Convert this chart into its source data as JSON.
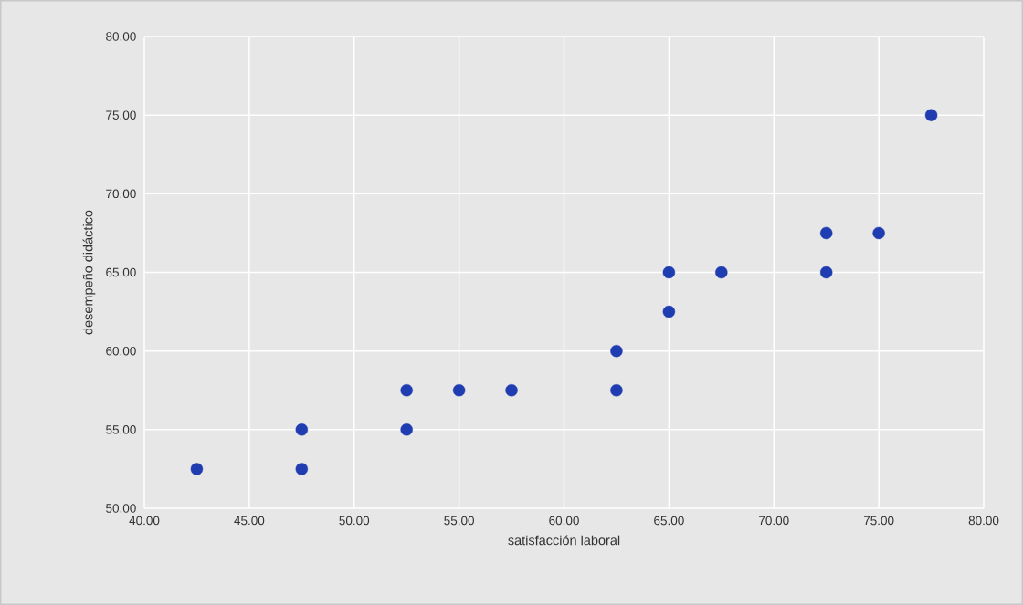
{
  "chart_data": {
    "type": "scatter",
    "xlabel": "satisfacción laboral",
    "ylabel": "desempeño didáctico",
    "x": [
      42.5,
      47.5,
      47.5,
      52.5,
      52.5,
      55,
      57.5,
      62.5,
      62.5,
      65,
      65,
      67.5,
      72.5,
      72.5,
      75,
      77.5
    ],
    "series": [
      {
        "color": "#1f3db0",
        "values": [
          52.5,
          55,
          52.5,
          57.5,
          55,
          57.5,
          57.5,
          60,
          57.5,
          65,
          62.5,
          65,
          67.5,
          65,
          67.5,
          75
        ]
      }
    ],
    "xlim": [
      40,
      80
    ],
    "ylim": [
      50,
      80
    ],
    "xticks": [
      {
        "value": 40,
        "label": "40.00"
      },
      {
        "value": 45,
        "label": "45.00"
      },
      {
        "value": 50,
        "label": "50.00"
      },
      {
        "value": 55,
        "label": "55.00"
      },
      {
        "value": 60,
        "label": "60.00"
      },
      {
        "value": 65,
        "label": "65.00"
      },
      {
        "value": 70,
        "label": "70.00"
      },
      {
        "value": 75,
        "label": "75.00"
      },
      {
        "value": 80,
        "label": "80.00"
      }
    ],
    "yticks": [
      {
        "value": 50,
        "label": "50.00"
      },
      {
        "value": 55,
        "label": "55.00"
      },
      {
        "value": 60,
        "label": "60.00"
      },
      {
        "value": 65,
        "label": "65.00"
      },
      {
        "value": 70,
        "label": "70.00"
      },
      {
        "value": 75,
        "label": "75.00"
      },
      {
        "value": 80,
        "label": "80.00"
      }
    ],
    "grid": true
  }
}
